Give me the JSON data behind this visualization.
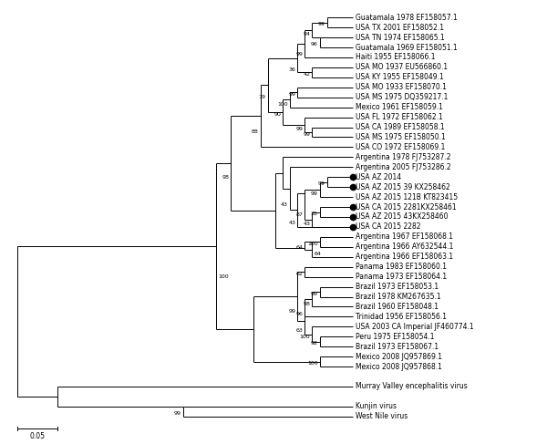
{
  "taxa": [
    {
      "label": "Guatamala 1978 EF158057.1",
      "y": 38,
      "has_dot": false
    },
    {
      "label": "USA TX 2001 EF158052.1",
      "y": 37,
      "has_dot": false
    },
    {
      "label": "USA TN 1974 EF158065.1",
      "y": 36,
      "has_dot": false
    },
    {
      "label": "Guatamala 1969 EF158051.1",
      "y": 35,
      "has_dot": false
    },
    {
      "label": "Haiti 1955 EF158066.1",
      "y": 34,
      "has_dot": false
    },
    {
      "label": "USA MO 1937 EU566860.1",
      "y": 33,
      "has_dot": false
    },
    {
      "label": "USA KY 1955 EF158049.1",
      "y": 32,
      "has_dot": false
    },
    {
      "label": "USA MO 1933 EF158070.1",
      "y": 31,
      "has_dot": false
    },
    {
      "label": "USA MS 1975 DQ359217.1",
      "y": 30,
      "has_dot": false
    },
    {
      "label": "Mexico 1961 EF158059.1",
      "y": 29,
      "has_dot": false
    },
    {
      "label": "USA FL 1972 EF158062.1",
      "y": 28,
      "has_dot": false
    },
    {
      "label": "USA CA 1989 EF158058.1",
      "y": 27,
      "has_dot": false
    },
    {
      "label": "USA MS 1975 EF158050.1",
      "y": 26,
      "has_dot": false
    },
    {
      "label": "USA CO 1972 EF158069.1",
      "y": 25,
      "has_dot": false
    },
    {
      "label": "Argentina 1978 FJ753287.2",
      "y": 24,
      "has_dot": false
    },
    {
      "label": "Argentina 2005 FJ753286.2",
      "y": 23,
      "has_dot": false
    },
    {
      "label": "USA AZ 2014",
      "y": 22,
      "has_dot": true
    },
    {
      "label": "USA AZ 2015 39 KX258462",
      "y": 21,
      "has_dot": true
    },
    {
      "label": "USA AZ 2015 121B KT823415",
      "y": 20,
      "has_dot": false
    },
    {
      "label": "USA CA 2015 2281KX258461",
      "y": 19,
      "has_dot": true
    },
    {
      "label": "USA AZ 2015 43KX258460",
      "y": 18,
      "has_dot": true
    },
    {
      "label": "USA CA 2015 2282",
      "y": 17,
      "has_dot": true
    },
    {
      "label": "Argentina 1967 EF158068.1",
      "y": 16,
      "has_dot": false
    },
    {
      "label": "Argentina 1966 AY632544.1",
      "y": 15,
      "has_dot": false
    },
    {
      "label": "Argentina 1966 EF158063.1",
      "y": 14,
      "has_dot": false
    },
    {
      "label": "Panama 1983 EF158060.1",
      "y": 13,
      "has_dot": false
    },
    {
      "label": "Panama 1973 EF158064.1",
      "y": 12,
      "has_dot": false
    },
    {
      "label": "Brazil 1973 EF158053.1",
      "y": 11,
      "has_dot": false
    },
    {
      "label": "Brazil 1978 KM267635.1",
      "y": 10,
      "has_dot": false
    },
    {
      "label": "Brazil 1960 EF158048.1",
      "y": 9,
      "has_dot": false
    },
    {
      "label": "Trinidad 1956 EF158056.1",
      "y": 8,
      "has_dot": false
    },
    {
      "label": "USA 2003 CA Imperial JF460774.1",
      "y": 7,
      "has_dot": false
    },
    {
      "label": "Peru 1975 EF158054.1",
      "y": 6,
      "has_dot": false
    },
    {
      "label": "Brazil 1973 EF158067.1",
      "y": 5,
      "has_dot": false
    },
    {
      "label": "Mexico 2008 JQ957869.1",
      "y": 4,
      "has_dot": false
    },
    {
      "label": "Mexico 2008 JQ957868.1",
      "y": 3,
      "has_dot": false
    },
    {
      "label": "Murray Valley encephalitis virus",
      "y": 1,
      "has_dot": false
    },
    {
      "label": "Kunjin virus",
      "y": -1,
      "has_dot": false
    },
    {
      "label": "West Nile virus",
      "y": -2,
      "has_dot": false
    }
  ],
  "bg_color": "#ffffff",
  "line_color": "#000000",
  "font_size": 5.5,
  "lw": 0.7
}
